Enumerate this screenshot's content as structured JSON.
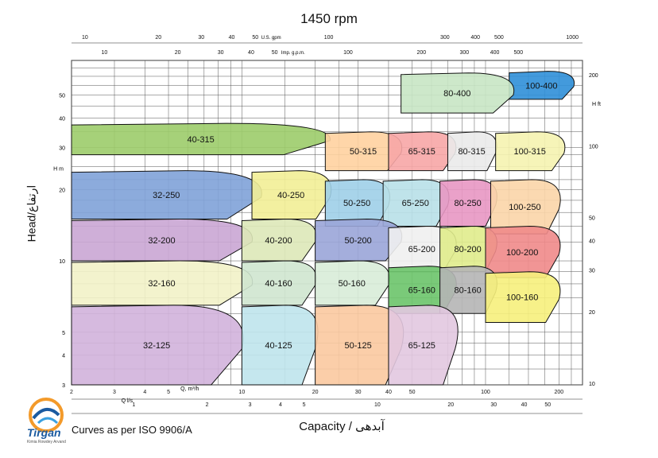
{
  "chart_data": {
    "type": "area",
    "title": "1450 rpm",
    "ylabel": "Head/ارتفاع",
    "xlabel": "Capacity / آبدهی",
    "footnote": "Curves as per ISO 9906/A",
    "logo_text": "Tirgan",
    "logo_subtext": "Kimia Rowdey Arvand",
    "x_scale": "log",
    "y_scale": "log",
    "grid": true,
    "axes": {
      "left_head_m": {
        "unit": "H m",
        "ticks": [
          3,
          4,
          5,
          10,
          20,
          30,
          40,
          50
        ]
      },
      "right_head_ft": {
        "unit": "H ft",
        "ticks": [
          10,
          20,
          30,
          40,
          50,
          100,
          200
        ]
      },
      "bottom_q_m3h": {
        "unit": "Q, m³/h",
        "ticks": [
          2,
          3,
          4,
          5,
          10,
          20,
          30,
          40,
          50,
          100,
          200
        ]
      },
      "bottom_q_ls": {
        "unit": "Q l/s",
        "ticks": [
          1,
          2,
          3,
          4,
          5,
          10,
          20,
          30,
          40,
          50
        ]
      },
      "top_us_gpm": {
        "unit": "U.S. gpm",
        "ticks": [
          10,
          20,
          30,
          40,
          50,
          100,
          300,
          400,
          500,
          1000
        ]
      },
      "top_imp_gpm": {
        "unit": "Imp. g.p.m.",
        "ticks": [
          10,
          20,
          30,
          40,
          50,
          100,
          200,
          300,
          400,
          500
        ]
      }
    },
    "pumps": [
      {
        "name": "100-400",
        "color": "#2f8fd8",
        "q": [
          125,
          230
        ],
        "h": [
          48,
          63
        ]
      },
      {
        "name": "80-400",
        "color": "#c8e6c4",
        "q": [
          45,
          130
        ],
        "h": [
          42,
          62
        ]
      },
      {
        "name": "40-315",
        "color": "#9ccc6a",
        "q": [
          2,
          23
        ],
        "h": [
          28,
          38
        ]
      },
      {
        "name": "50-315",
        "color": "#ffd1a0",
        "q": [
          22,
          45
        ],
        "h": [
          24,
          35
        ]
      },
      {
        "name": "65-315",
        "color": "#f7a6a6",
        "q": [
          40,
          75
        ],
        "h": [
          24,
          35
        ]
      },
      {
        "name": "80-315",
        "color": "#eaeaea",
        "q": [
          70,
          110
        ],
        "h": [
          24,
          35
        ]
      },
      {
        "name": "100-315",
        "color": "#f5f3b0",
        "q": [
          110,
          210
        ],
        "h": [
          24,
          35
        ]
      },
      {
        "name": "32-250",
        "color": "#7fa2d8",
        "q": [
          2,
          12
        ],
        "h": [
          15,
          24
        ]
      },
      {
        "name": "40-250",
        "color": "#f2ee96",
        "q": [
          11,
          23
        ],
        "h": [
          15,
          24
        ]
      },
      {
        "name": "50-250",
        "color": "#9fcfe8",
        "q": [
          22,
          40
        ],
        "h": [
          14,
          22
        ]
      },
      {
        "name": "65-250",
        "color": "#b8e0e8",
        "q": [
          38,
          70
        ],
        "h": [
          14,
          22
        ]
      },
      {
        "name": "80-250",
        "color": "#e897c3",
        "q": [
          65,
          110
        ],
        "h": [
          14,
          22
        ]
      },
      {
        "name": "100-250",
        "color": "#fbd5a8",
        "q": [
          105,
          200
        ],
        "h": [
          13,
          22
        ]
      },
      {
        "name": "32-200",
        "color": "#caa6d4",
        "q": [
          2,
          11
        ],
        "h": [
          10,
          15
        ]
      },
      {
        "name": "40-200",
        "color": "#dde8b8",
        "q": [
          10,
          20
        ],
        "h": [
          10,
          15
        ]
      },
      {
        "name": "50-200",
        "color": "#9aa5d8",
        "q": [
          20,
          45
        ],
        "h": [
          10,
          15
        ]
      },
      {
        "name": "65-200",
        "color": "#f0f0f0",
        "q": [
          40,
          75
        ],
        "h": [
          9,
          14
        ]
      },
      {
        "name": "80-200",
        "color": "#e0ec8c",
        "q": [
          65,
          110
        ],
        "h": [
          9,
          14
        ]
      },
      {
        "name": "100-200",
        "color": "#f08a8a",
        "q": [
          100,
          200
        ],
        "h": [
          8.5,
          14
        ]
      },
      {
        "name": "32-160",
        "color": "#f2f2c8",
        "q": [
          2,
          11
        ],
        "h": [
          6.5,
          10
        ]
      },
      {
        "name": "40-160",
        "color": "#cfe6cf",
        "q": [
          10,
          20
        ],
        "h": [
          6.5,
          10
        ]
      },
      {
        "name": "50-160",
        "color": "#d8ecd8",
        "q": [
          20,
          40
        ],
        "h": [
          6.5,
          10
        ]
      },
      {
        "name": "65-160",
        "color": "#6cc46a",
        "q": [
          40,
          75
        ],
        "h": [
          6,
          9.5
        ]
      },
      {
        "name": "80-160",
        "color": "#b5b5b5",
        "q": [
          65,
          110
        ],
        "h": [
          6,
          9.5
        ]
      },
      {
        "name": "100-160",
        "color": "#f6ef7c",
        "q": [
          100,
          200
        ],
        "h": [
          5.5,
          9
        ]
      },
      {
        "name": "32-125",
        "color": "#d2b2dc",
        "q": [
          2,
          10
        ],
        "h": [
          3,
          6.5
        ]
      },
      {
        "name": "40-125",
        "color": "#bfe4ec",
        "q": [
          10,
          20
        ],
        "h": [
          3,
          6.5
        ]
      },
      {
        "name": "50-125",
        "color": "#fbc9a0",
        "q": [
          20,
          45
        ],
        "h": [
          3,
          6.5
        ]
      },
      {
        "name": "65-125",
        "color": "#e2c8e0",
        "q": [
          40,
          75
        ],
        "h": [
          3,
          6.5
        ]
      }
    ]
  }
}
